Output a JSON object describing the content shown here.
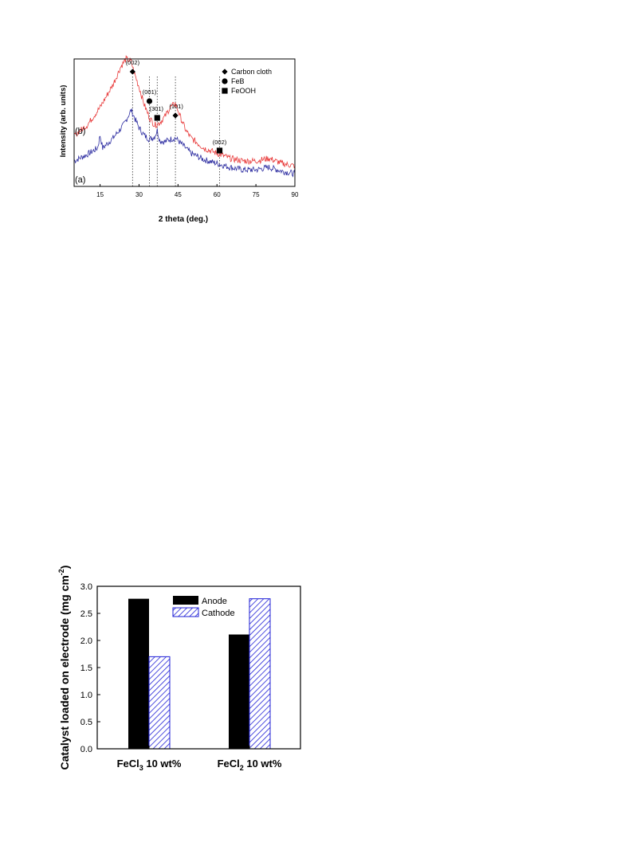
{
  "chart_data": [
    {
      "type": "line",
      "title": "",
      "xlabel": "2 theta (deg.)",
      "ylabel": "Intensity (arb. units)",
      "xlim": [
        5,
        90
      ],
      "xticks": [
        15,
        30,
        45,
        60,
        75,
        90
      ],
      "legend": {
        "placement": "top-right",
        "items": [
          {
            "label": "Carbon cloth",
            "marker": "diamond"
          },
          {
            "label": "FeB",
            "marker": "circle"
          },
          {
            "label": "FeOOH",
            "marker": "square"
          }
        ]
      },
      "series": [
        {
          "name": "(a)",
          "color": "#2b2ba0",
          "x": [
            5,
            10,
            14,
            15,
            16,
            20,
            24,
            26,
            27,
            28,
            30,
            32,
            34,
            36,
            37,
            38,
            40,
            42,
            44,
            46,
            48,
            50,
            55,
            60,
            65,
            70,
            75,
            80,
            85,
            90
          ],
          "y": [
            0.2,
            0.25,
            0.3,
            0.4,
            0.3,
            0.38,
            0.48,
            0.56,
            0.6,
            0.55,
            0.46,
            0.4,
            0.37,
            0.39,
            0.44,
            0.36,
            0.35,
            0.37,
            0.38,
            0.34,
            0.3,
            0.26,
            0.21,
            0.18,
            0.15,
            0.13,
            0.13,
            0.15,
            0.12,
            0.1
          ]
        },
        {
          "name": "(b)",
          "color": "#e83a3a",
          "x": [
            5,
            10,
            15,
            20,
            23,
            25,
            27,
            28,
            30,
            32,
            34,
            36,
            38,
            40,
            42,
            44,
            46,
            48,
            50,
            55,
            60,
            65,
            70,
            75,
            80,
            85,
            90
          ],
          "y": [
            0.4,
            0.48,
            0.62,
            0.8,
            0.94,
            1.0,
            0.98,
            0.9,
            0.78,
            0.64,
            0.54,
            0.48,
            0.5,
            0.55,
            0.62,
            0.65,
            0.54,
            0.44,
            0.38,
            0.3,
            0.26,
            0.22,
            0.2,
            0.2,
            0.22,
            0.18,
            0.16
          ]
        }
      ],
      "peak_markers": [
        {
          "x": 27.5,
          "label": "(002)",
          "marker": "diamond"
        },
        {
          "x": 34,
          "label": "(001)",
          "marker": "circle"
        },
        {
          "x": 37,
          "label": "(301)",
          "marker": "square"
        },
        {
          "x": 44,
          "label": "(101)",
          "marker": "diamond"
        },
        {
          "x": 61,
          "label": "(002)",
          "marker": "square"
        }
      ],
      "reference_lines_x": [
        27.5,
        34,
        37,
        44,
        61
      ],
      "curve_labels": [
        {
          "text": "(a)",
          "series": "(a)"
        },
        {
          "text": "(b)",
          "series": "(b)"
        }
      ]
    },
    {
      "type": "bar",
      "title": "",
      "xlabel": "",
      "ylabel": "Catalyst loaded on electrode (mg cm-2)",
      "ylabel_parts": {
        "main": "Catalyst loaded on electrode (mg cm",
        "sup": "-2",
        "close": ")"
      },
      "ylim": [
        0,
        3.0
      ],
      "yticks": [
        0.0,
        0.5,
        1.0,
        1.5,
        2.0,
        2.5,
        3.0
      ],
      "ytick_labels": [
        "0.0",
        "0.5",
        "1.0",
        "1.5",
        "2.0",
        "2.5",
        "3.0"
      ],
      "categories": [
        "FeCl3 10 wt%",
        "FeCl2 10 wt%"
      ],
      "category_parts": [
        {
          "base": "FeCl",
          "sub": "3",
          "rest": " 10 wt%"
        },
        {
          "base": "FeCl",
          "sub": "2",
          "rest": " 10 wt%"
        }
      ],
      "legend": {
        "placement": "top-right"
      },
      "series": [
        {
          "name": "Anode",
          "color": "#000000",
          "fill": "solid",
          "values": [
            2.77,
            2.11
          ]
        },
        {
          "name": "Cathode",
          "color": "#1f1fd6",
          "fill": "hatched",
          "values": [
            1.7,
            2.77
          ]
        }
      ]
    }
  ]
}
